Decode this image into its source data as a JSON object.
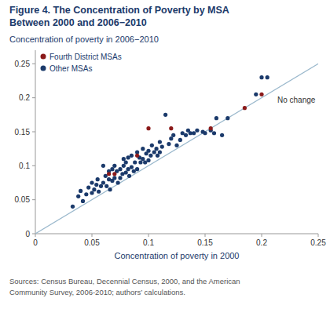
{
  "chart_data": {
    "type": "scatter",
    "title": "Figure 4. The Concentration of Poverty by MSA\nBetween 2000 and 2006−2010",
    "ylabel": "Concentration of poverty in 2006−2010",
    "xlabel": "Concentration of poverty in 2000",
    "footer": "Sources: Census Bureau, Decennial Census, 2000, and the American\nCommunity Survey, 2006-2010;  authors’ calculations.",
    "annotations": [
      "No change"
    ],
    "xlim": [
      0,
      0.25
    ],
    "ylim": [
      0,
      0.27
    ],
    "xticks": [
      0,
      0.05,
      0.1,
      0.15,
      0.2,
      0.25
    ],
    "yticks": [
      0,
      0.05,
      0.1,
      0.15,
      0.2,
      0.25
    ],
    "grid": false,
    "legend": "upper left",
    "series": [
      {
        "name": "Fourth District MSAs",
        "color": "#8b1a1a",
        "x": [
          0.065,
          0.07,
          0.09,
          0.1,
          0.12,
          0.155,
          0.185,
          0.2
        ],
        "values": [
          0.088,
          0.088,
          0.115,
          0.155,
          0.155,
          0.155,
          0.185,
          0.205
        ]
      },
      {
        "name": "Other MSAs",
        "color": "#1b3a6b",
        "x": [
          0.033,
          0.038,
          0.04,
          0.042,
          0.045,
          0.047,
          0.05,
          0.05,
          0.052,
          0.054,
          0.055,
          0.056,
          0.058,
          0.06,
          0.06,
          0.062,
          0.063,
          0.065,
          0.065,
          0.066,
          0.068,
          0.068,
          0.07,
          0.07,
          0.072,
          0.073,
          0.075,
          0.075,
          0.077,
          0.078,
          0.078,
          0.08,
          0.08,
          0.082,
          0.082,
          0.083,
          0.085,
          0.085,
          0.087,
          0.088,
          0.09,
          0.09,
          0.092,
          0.093,
          0.095,
          0.095,
          0.097,
          0.098,
          0.1,
          0.1,
          0.102,
          0.103,
          0.105,
          0.107,
          0.108,
          0.11,
          0.11,
          0.112,
          0.115,
          0.118,
          0.12,
          0.122,
          0.125,
          0.128,
          0.13,
          0.133,
          0.135,
          0.137,
          0.14,
          0.143,
          0.148,
          0.15,
          0.155,
          0.158,
          0.16,
          0.165,
          0.17,
          0.195,
          0.2,
          0.205
        ],
        "values": [
          0.04,
          0.055,
          0.063,
          0.048,
          0.058,
          0.068,
          0.06,
          0.075,
          0.065,
          0.072,
          0.08,
          0.062,
          0.07,
          0.075,
          0.1,
          0.085,
          0.07,
          0.08,
          0.092,
          0.065,
          0.078,
          0.095,
          0.082,
          0.1,
          0.092,
          0.075,
          0.082,
          0.095,
          0.088,
          0.1,
          0.11,
          0.09,
          0.105,
          0.095,
          0.112,
          0.085,
          0.098,
          0.115,
          0.092,
          0.105,
          0.095,
          0.12,
          0.112,
          0.105,
          0.11,
          0.125,
          0.105,
          0.118,
          0.108,
          0.122,
          0.115,
          0.13,
          0.12,
          0.125,
          0.115,
          0.12,
          0.135,
          0.128,
          0.175,
          0.132,
          0.14,
          0.145,
          0.13,
          0.138,
          0.148,
          0.145,
          0.152,
          0.148,
          0.148,
          0.152,
          0.15,
          0.148,
          0.152,
          0.148,
          0.17,
          0.145,
          0.17,
          0.205,
          0.23,
          0.23
        ]
      }
    ]
  }
}
